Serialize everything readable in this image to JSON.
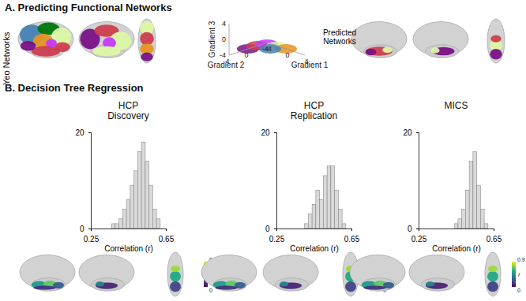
{
  "panels": [
    {
      "title": "A. Predicting Functional Networks",
      "left_label": "Yeo Networks",
      "right_label": "Predicted Networks",
      "gradient_axes": {
        "labels": [
          "Gradient 1",
          "Gradient 2",
          "Gradient 3"
        ],
        "ticks": [
          -4,
          0,
          4
        ]
      }
    },
    {
      "title": "B. Decision Tree Regression",
      "colorbar": {
        "range": [
          0,
          0.9
        ],
        "ticks": [
          0,
          0.9
        ],
        "label": "r"
      }
    }
  ],
  "chart_data": [
    {
      "type": "histogram",
      "title": "HCP Discovery",
      "bins": [
        0.36,
        0.38,
        0.4,
        0.42,
        0.44,
        0.46,
        0.48,
        0.5,
        0.52,
        0.54,
        0.56,
        0.58,
        0.6,
        0.62
      ],
      "values": [
        1,
        1,
        2,
        4,
        6,
        9,
        12,
        16,
        18,
        14,
        9,
        4,
        2
      ],
      "color": "#d9d9d9",
      "xlabel": "Correlation (r)",
      "xlim": [
        0.25,
        0.65
      ],
      "xticks": [
        0.25,
        0.65
      ],
      "ylim": [
        0,
        20
      ],
      "yticks": [
        0,
        20
      ]
    },
    {
      "type": "histogram",
      "title": "HCP Replication",
      "bins": [
        0.4,
        0.42,
        0.44,
        0.46,
        0.48,
        0.5,
        0.52,
        0.54,
        0.56,
        0.58,
        0.6,
        0.62
      ],
      "values": [
        1,
        3,
        5,
        8,
        6,
        11,
        13,
        13,
        8,
        4,
        1
      ],
      "color": "#d9d9d9",
      "xlabel": "Correlation (r)",
      "xlim": [
        0.25,
        0.65
      ],
      "xticks": [
        0.25,
        0.65
      ],
      "ylim": [
        0,
        20
      ],
      "yticks": [
        0,
        20
      ]
    },
    {
      "type": "histogram",
      "title": "MICS",
      "bins": [
        0.44,
        0.46,
        0.48,
        0.5,
        0.52,
        0.54,
        0.56,
        0.58,
        0.6,
        0.62
      ],
      "values": [
        1,
        2,
        4,
        8,
        14,
        16,
        9,
        4,
        1
      ],
      "color": "#d9d9d9",
      "xlabel": "Correlation (r)",
      "xlim": [
        0.25,
        0.65
      ],
      "xticks": [
        0.25,
        0.65
      ],
      "ylim": [
        0,
        20
      ],
      "yticks": [
        0,
        20
      ]
    }
  ]
}
